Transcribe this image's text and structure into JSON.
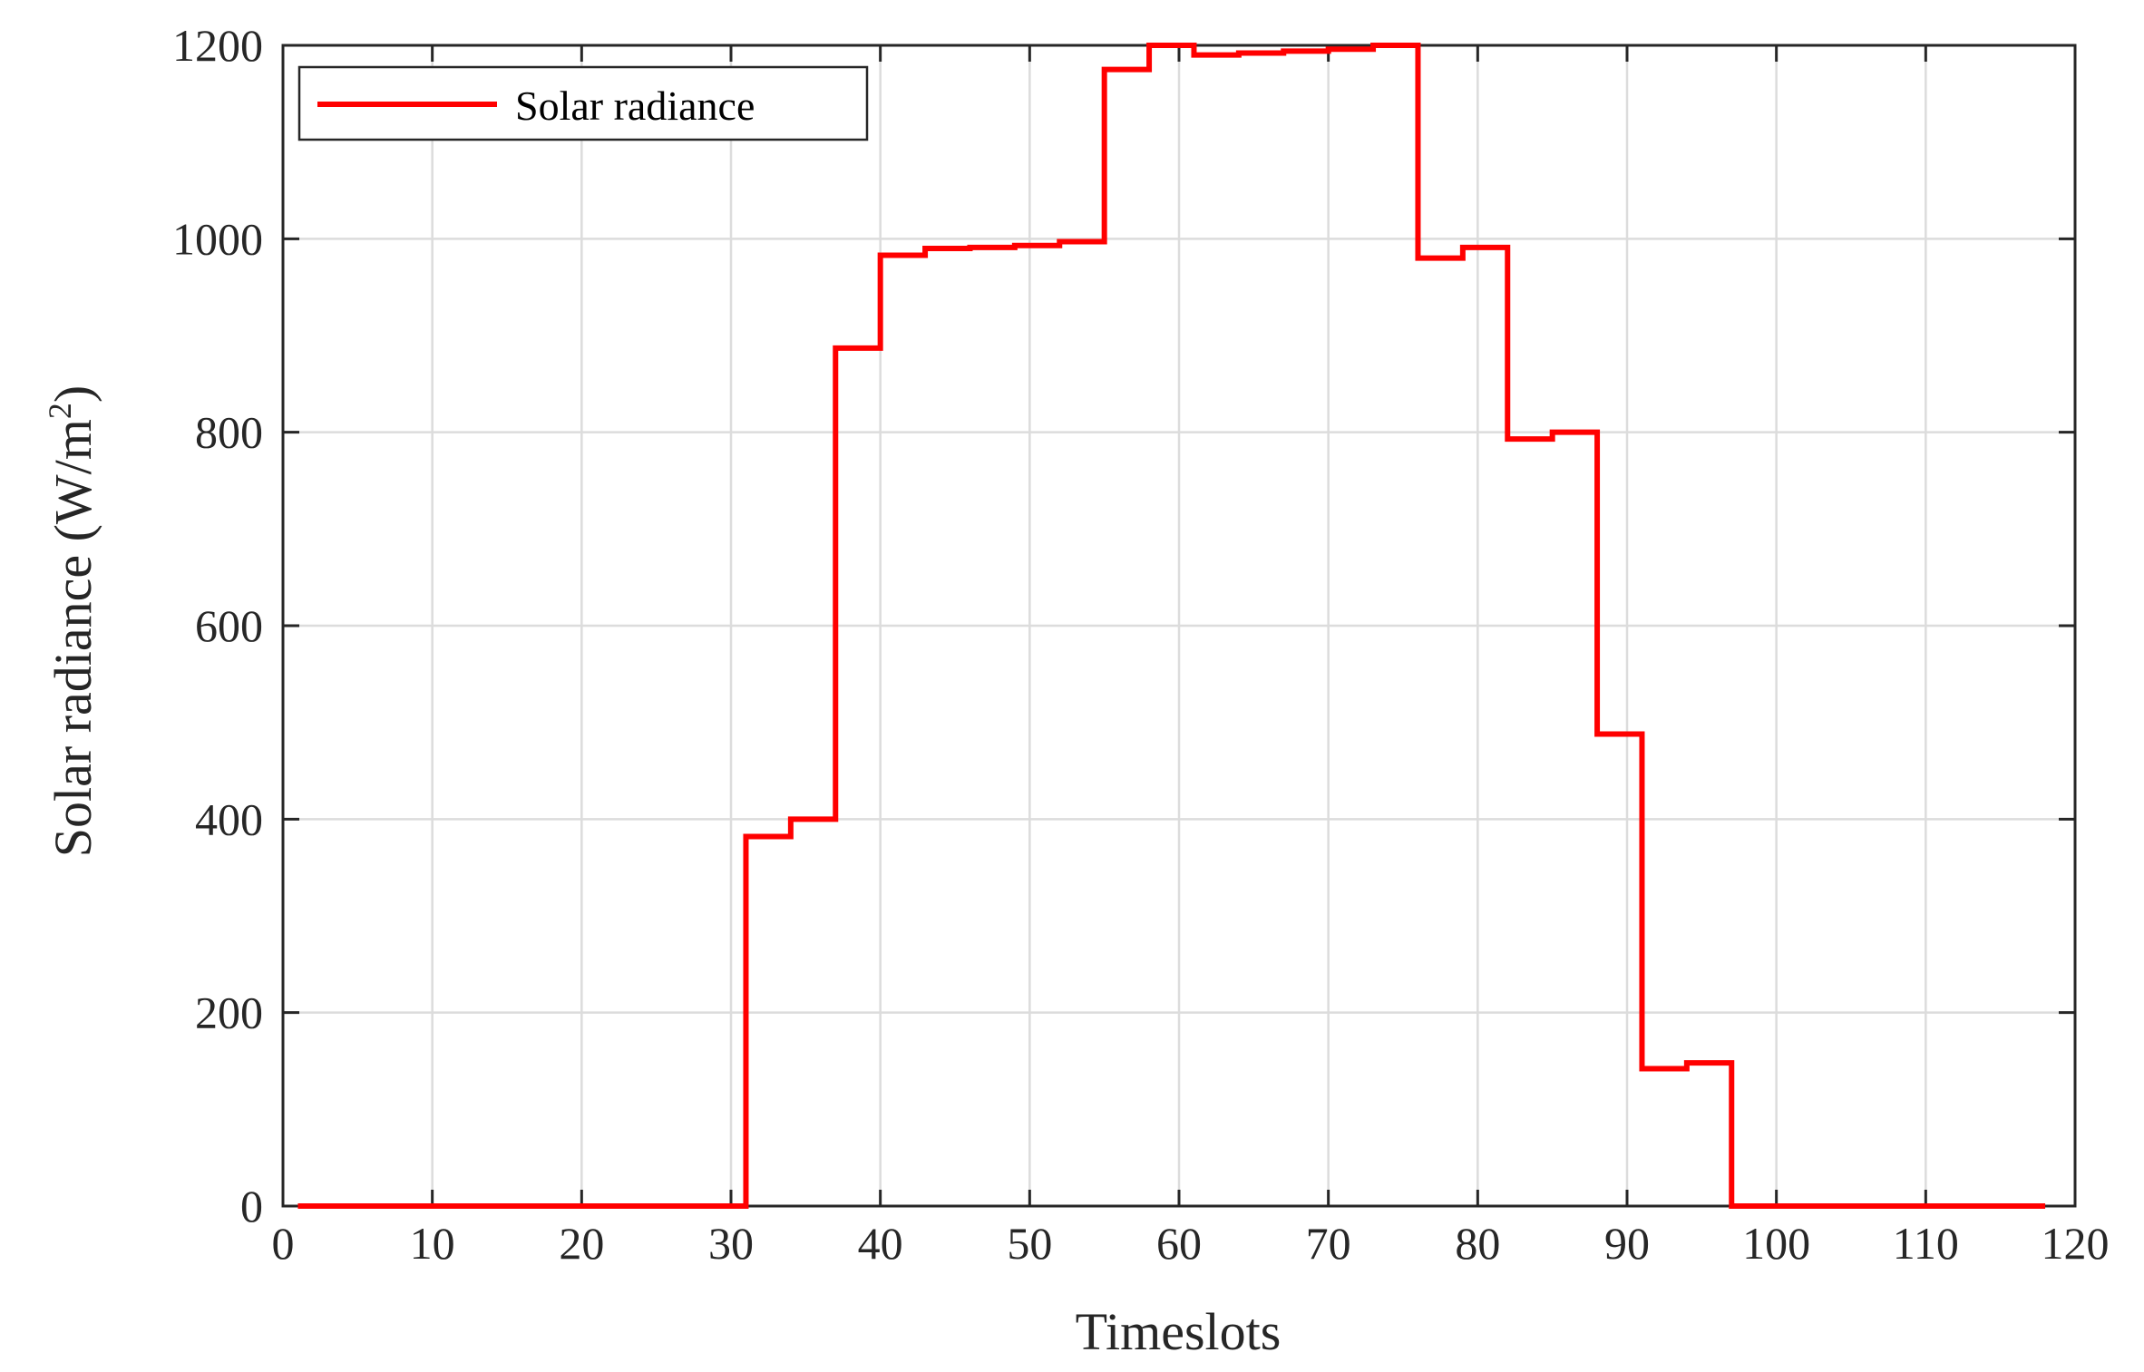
{
  "chart_data": {
    "type": "line",
    "style": "stairs",
    "xlabel": "Timeslots",
    "ylabel": "Solar radiance (W/m",
    "ylabel_superscript": "2",
    "ylabel_close": ")",
    "xlim": [
      0,
      120
    ],
    "ylim": [
      0,
      1200
    ],
    "xticks": [
      0,
      10,
      20,
      30,
      40,
      50,
      60,
      70,
      80,
      90,
      100,
      110,
      120
    ],
    "yticks": [
      0,
      200,
      400,
      600,
      800,
      1000,
      1200
    ],
    "grid": true,
    "legend_position": "top-left",
    "series": [
      {
        "name": "Solar radiance",
        "color": "#ff0000",
        "x": [
          1,
          31,
          34,
          37,
          40,
          43,
          46,
          49,
          52,
          55,
          58,
          61,
          64,
          67,
          70,
          73,
          76,
          79,
          82,
          85,
          88,
          91,
          94,
          97,
          100,
          103,
          106,
          109,
          112,
          115,
          118
        ],
        "y": [
          0,
          382,
          400,
          887,
          983,
          990,
          991,
          993,
          997,
          1175,
          1200,
          1190,
          1192,
          1194,
          1196,
          1200,
          980,
          991,
          793,
          800,
          488,
          142,
          148,
          0,
          0,
          0,
          0,
          0,
          0,
          0,
          0
        ]
      }
    ]
  }
}
